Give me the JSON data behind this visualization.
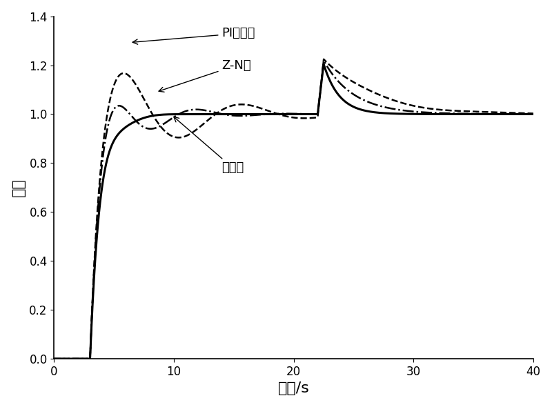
{
  "title": "",
  "xlabel": "时间/s",
  "ylabel": "响应",
  "xlim": [
    0,
    40
  ],
  "ylim": [
    0,
    1.4
  ],
  "xticks": [
    0,
    10,
    20,
    30,
    40
  ],
  "yticks": [
    0,
    0.2,
    0.4,
    0.6,
    0.8,
    1.0,
    1.2,
    1.4
  ],
  "background_color": "#ffffff",
  "ann_pi_text": "PI控制器",
  "ann_zn_text": "Z-N法",
  "ann_bf_text": "本方法",
  "curves": {
    "PI": {
      "style": "--",
      "color": "#000000",
      "linewidth": 1.8
    },
    "ZN": {
      "style": "-.",
      "color": "#000000",
      "linewidth": 1.8
    },
    "BF": {
      "style": "-",
      "color": "#000000",
      "linewidth": 2.2
    }
  }
}
